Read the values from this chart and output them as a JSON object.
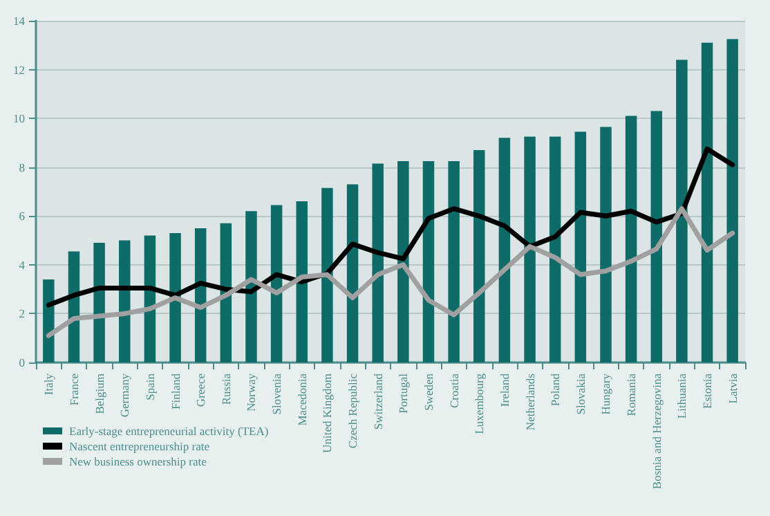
{
  "chart_data": {
    "type": "bar",
    "categories": [
      "Italy",
      "France",
      "Belgium",
      "Germany",
      "Spain",
      "Finland",
      "Greece",
      "Russia",
      "Norway",
      "Slovenia",
      "Macedonia",
      "United Kingdom",
      "Czech Republic",
      "Switzerland",
      "Portugal",
      "Sweden",
      "Croatia",
      "Luxembourg",
      "Ireland",
      "Netherlands",
      "Poland",
      "Slovakia",
      "Hungary",
      "Romania",
      "Bosnia and Herzegovina",
      "Lithuania",
      "Estonia",
      "Latvia"
    ],
    "series": [
      {
        "name": "Early-stage entrepreneurial activity (TEA)",
        "color": "#0f6b68",
        "values": [
          3.4,
          4.55,
          4.9,
          5.0,
          5.2,
          5.3,
          5.5,
          5.7,
          6.2,
          6.45,
          6.6,
          7.15,
          7.3,
          8.15,
          8.25,
          8.25,
          8.25,
          8.7,
          9.2,
          9.25,
          9.25,
          9.45,
          9.65,
          10.1,
          10.3,
          12.4,
          13.1,
          13.25
        ]
      },
      {
        "name": "Nascent entrepreneurship rate",
        "type": "line",
        "color": "#000000",
        "values": [
          2.35,
          2.75,
          3.05,
          3.05,
          3.05,
          2.75,
          3.25,
          3.0,
          2.9,
          3.6,
          3.3,
          3.65,
          4.85,
          4.5,
          4.25,
          5.9,
          6.3,
          6.0,
          5.6,
          4.75,
          5.15,
          6.15,
          6.0,
          6.2,
          5.75,
          6.1,
          8.75,
          8.1
        ]
      },
      {
        "name": "New business ownership rate",
        "type": "line",
        "color": "#a0a0a0",
        "values": [
          1.1,
          1.8,
          1.9,
          2.0,
          2.2,
          2.65,
          2.25,
          2.75,
          3.4,
          2.85,
          3.5,
          3.6,
          2.65,
          3.6,
          4.0,
          2.55,
          1.95,
          2.85,
          3.8,
          4.75,
          4.3,
          3.6,
          3.75,
          4.15,
          4.65,
          6.3,
          4.6,
          5.3
        ]
      }
    ],
    "ylim": [
      0,
      14
    ],
    "yticks": [
      0,
      2,
      4,
      6,
      8,
      10,
      12,
      14
    ],
    "grid": "y",
    "legend": "bottom left",
    "marker": "none",
    "line_style": "solid"
  }
}
